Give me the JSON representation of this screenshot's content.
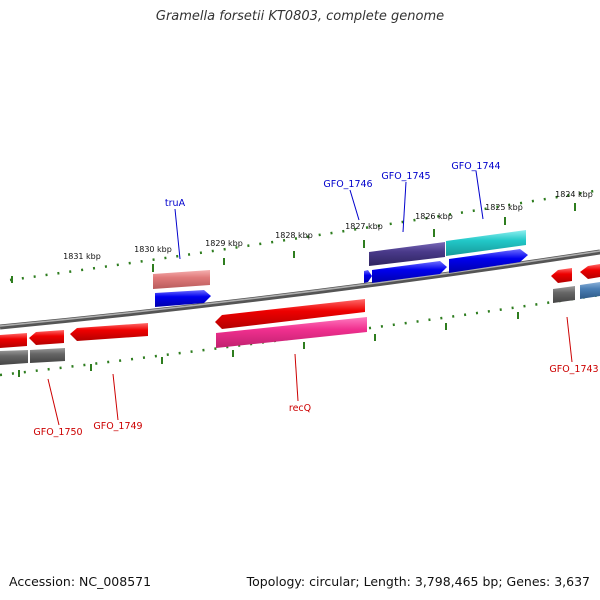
{
  "title": "Gramella forsetii KT0803, complete genome",
  "accession": "Accession: NC_008571",
  "topology": "Topology: circular; Length: 3,798,465 bp; Genes: 3,637",
  "kbp_labels": [
    "1831 kbp",
    "1830 kbp",
    "1829 kbp",
    "1828 kbp",
    "1827 kbp",
    "1826 kbp",
    "1825 kbp",
    "1824 kbp"
  ],
  "gene_labels_top": [
    "truA",
    "GFO_1746",
    "GFO_1745",
    "GFO_1744"
  ],
  "gene_labels_bottom": [
    "GFO_1750",
    "GFO_1749",
    "recQ",
    "GFO_1743"
  ],
  "colors": {
    "backbone": "#7a7a7a",
    "tick": "#2e7d1f",
    "forward_cds": "#0000ee",
    "reverse_cds": "#ee0000",
    "label_top": "#0000cc",
    "label_bottom": "#cc0000",
    "gray_feature": "#666666",
    "pink_feature": "#f0308f",
    "salmon_feature": "#e07a7a",
    "purple_feature": "#4a3a8a",
    "cyan_feature": "#22c8c8",
    "steel_feature": "#4a7fb5"
  }
}
